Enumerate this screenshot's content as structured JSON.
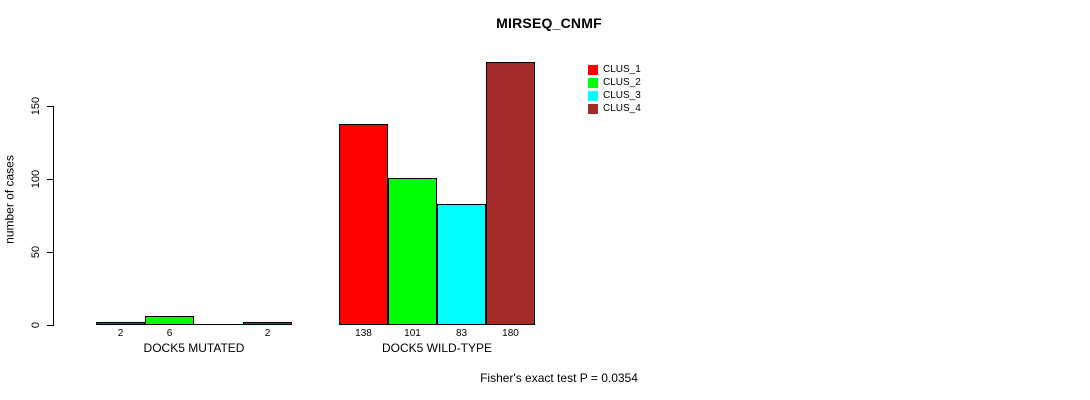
{
  "title": "MIRSEQ_CNMF",
  "chart_data": {
    "type": "bar",
    "title": "MIRSEQ_CNMF",
    "xlabel": "",
    "ylabel": "number of cases",
    "ylim": [
      0,
      185
    ],
    "yticks": [
      0,
      50,
      100,
      150
    ],
    "grid": false,
    "legend_position": "top-right-inside",
    "series": [
      {
        "name": "CLUS_1",
        "color": "#ff0000"
      },
      {
        "name": "CLUS_2",
        "color": "#00ff00"
      },
      {
        "name": "CLUS_3",
        "color": "#00ffff"
      },
      {
        "name": "CLUS_4",
        "color": "#a52a2a"
      }
    ],
    "groups": [
      {
        "label": "DOCK5 MUTATED",
        "values": [
          2,
          6,
          0,
          2
        ],
        "bar_labels": [
          "2",
          "6",
          "",
          "2"
        ]
      },
      {
        "label": "DOCK5 WILD-TYPE",
        "values": [
          138,
          101,
          83,
          180
        ],
        "bar_labels": [
          "138",
          "101",
          "83",
          "180"
        ]
      }
    ],
    "annotation": "Fisher's exact test P = 0.0354"
  },
  "colors": {
    "background": "#ffffff",
    "axis": "#000000",
    "text": "#000000"
  }
}
